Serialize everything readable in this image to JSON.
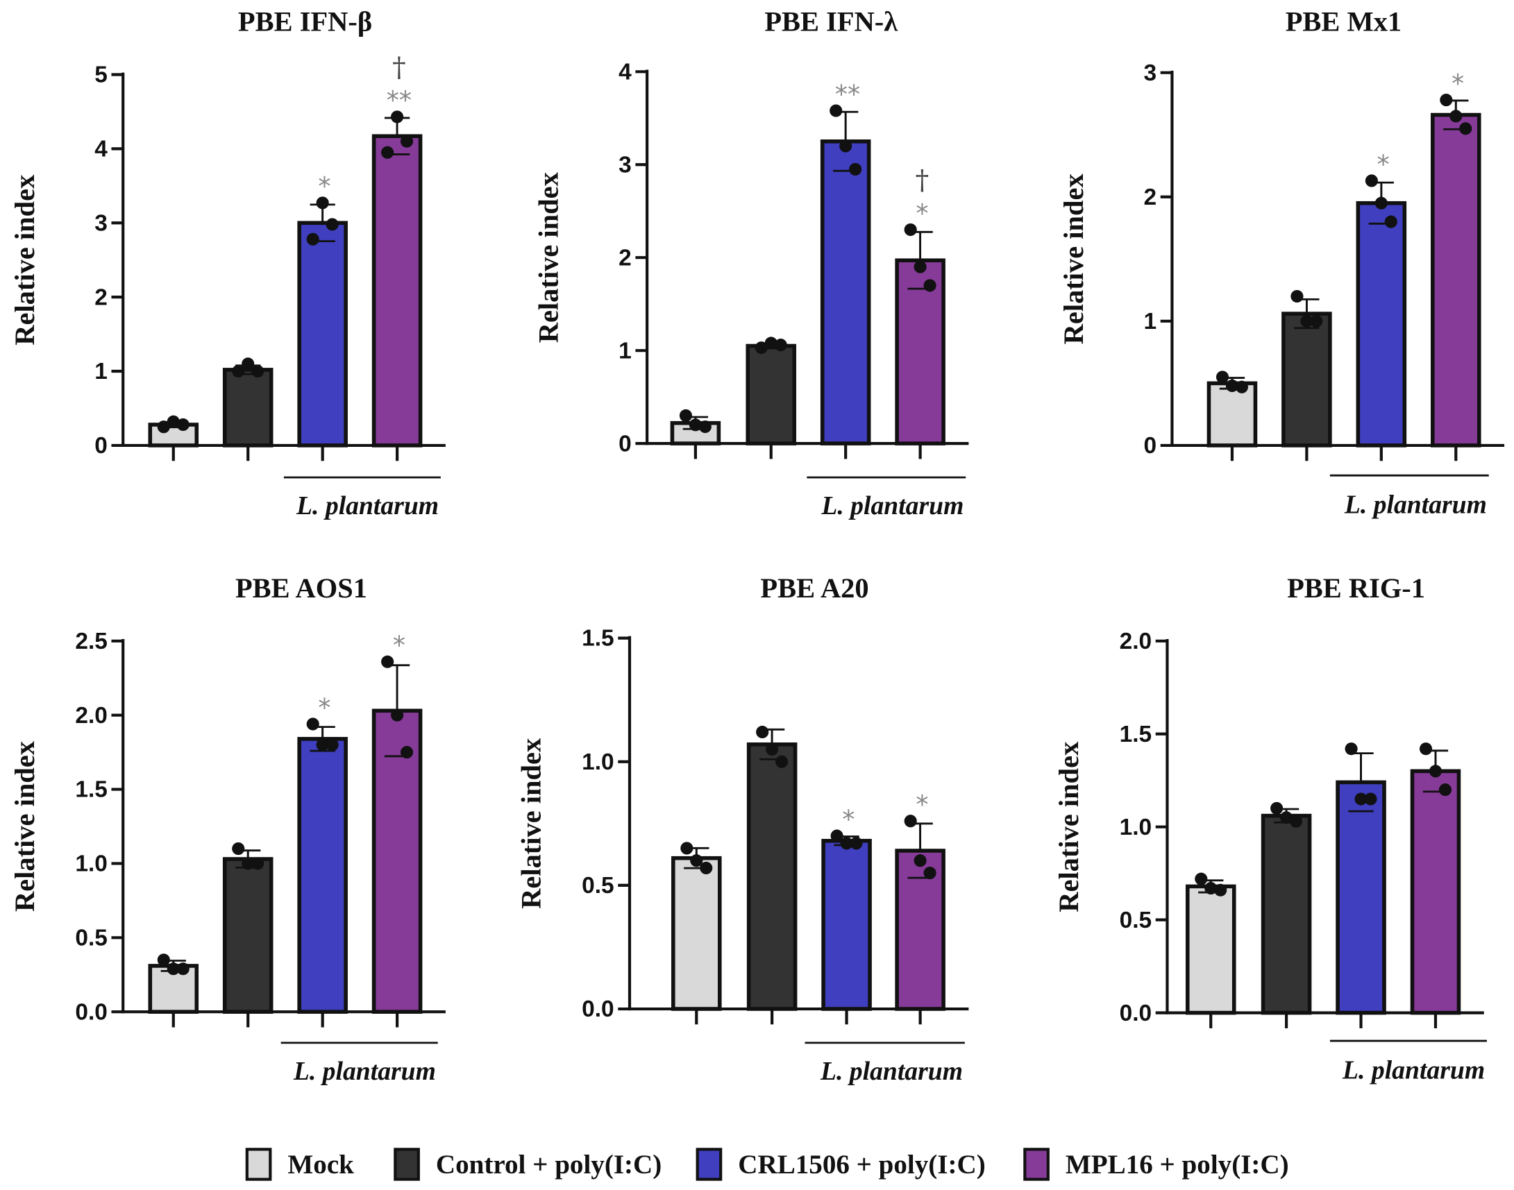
{
  "chart_data": [
    {
      "type": "bar",
      "title": "PBE IFN-β",
      "ylabel": "Relative index",
      "ylim": [
        0,
        5
      ],
      "yticks": [
        "0",
        "1",
        "2",
        "3",
        "4",
        "5"
      ],
      "group_label": "L. plantarum",
      "categories": [
        "Mock",
        "Control + poly(I:C)",
        "CRL1506 + poly(I:C)",
        "MPL16 + poly(I:C)"
      ],
      "values": [
        0.28,
        1.02,
        3.0,
        4.17
      ],
      "points": [
        [
          0.25,
          0.32,
          0.28
        ],
        [
          1.0,
          1.1,
          1.0
        ],
        [
          2.78,
          3.27,
          2.98
        ],
        [
          3.95,
          4.43,
          4.1
        ]
      ],
      "significance": [
        "",
        "",
        "*",
        "**"
      ],
      "dagger": [
        "",
        "",
        "",
        "†"
      ]
    },
    {
      "type": "bar",
      "title": "PBE IFN-λ",
      "ylabel": "Relative index",
      "ylim": [
        0,
        4
      ],
      "yticks": [
        "0",
        "1",
        "2",
        "3",
        "4"
      ],
      "group_label": "L. plantarum",
      "categories": [
        "Mock",
        "Control + poly(I:C)",
        "CRL1506 + poly(I:C)",
        "MPL16 + poly(I:C)"
      ],
      "values": [
        0.22,
        1.05,
        3.25,
        1.97
      ],
      "points": [
        [
          0.3,
          0.2,
          0.18
        ],
        [
          1.03,
          1.08,
          1.06
        ],
        [
          3.58,
          3.2,
          2.95
        ],
        [
          2.3,
          1.9,
          1.7
        ]
      ],
      "significance": [
        "",
        "",
        "**",
        "*"
      ],
      "dagger": [
        "",
        "",
        "",
        "†"
      ]
    },
    {
      "type": "bar",
      "title": "PBE Mx1",
      "ylabel": "Relative index",
      "ylim": [
        0,
        3
      ],
      "yticks": [
        "0",
        "1",
        "2",
        "3"
      ],
      "group_label": "L. plantarum",
      "categories": [
        "Mock",
        "Control + poly(I:C)",
        "CRL1506 + poly(I:C)",
        "MPL16 + poly(I:C)"
      ],
      "values": [
        0.5,
        1.06,
        1.95,
        2.66
      ],
      "points": [
        [
          0.55,
          0.48,
          0.47
        ],
        [
          1.2,
          1.0,
          1.0
        ],
        [
          2.13,
          1.95,
          1.8
        ],
        [
          2.78,
          2.65,
          2.55
        ]
      ],
      "significance": [
        "",
        "",
        "*",
        "*"
      ],
      "dagger": [
        "",
        "",
        "",
        ""
      ]
    },
    {
      "type": "bar",
      "title": "PBE AOS1",
      "ylabel": "Relative index",
      "ylim": [
        0,
        2.5
      ],
      "yticks": [
        "0.0",
        "0.5",
        "1.0",
        "1.5",
        "2.0",
        "2.5"
      ],
      "group_label": "L. plantarum",
      "categories": [
        "Mock",
        "Control + poly(I:C)",
        "CRL1506 + poly(I:C)",
        "MPL16 + poly(I:C)"
      ],
      "values": [
        0.31,
        1.03,
        1.84,
        2.03
      ],
      "points": [
        [
          0.35,
          0.29,
          0.29
        ],
        [
          1.1,
          1.0,
          1.0
        ],
        [
          1.94,
          1.8,
          1.8
        ],
        [
          2.36,
          2.0,
          1.75
        ]
      ],
      "significance": [
        "",
        "",
        "*",
        "*"
      ],
      "dagger": [
        "",
        "",
        "",
        ""
      ]
    },
    {
      "type": "bar",
      "title": "PBE A20",
      "ylabel": "Relative index",
      "ylim": [
        0,
        1.5
      ],
      "yticks": [
        "0.0",
        "0.5",
        "1.0",
        "1.5"
      ],
      "group_label": "L. plantarum",
      "categories": [
        "Mock",
        "Control + poly(I:C)",
        "CRL1506 + poly(I:C)",
        "MPL16 + poly(I:C)"
      ],
      "values": [
        0.61,
        1.07,
        0.68,
        0.64
      ],
      "points": [
        [
          0.65,
          0.6,
          0.57
        ],
        [
          1.12,
          1.05,
          1.0
        ],
        [
          0.7,
          0.67,
          0.67
        ],
        [
          0.76,
          0.6,
          0.55
        ]
      ],
      "significance": [
        "",
        "",
        "*",
        "*"
      ],
      "dagger": [
        "",
        "",
        "",
        ""
      ]
    },
    {
      "type": "bar",
      "title": "PBE RIG-1",
      "ylabel": "Relative index",
      "ylim": [
        0,
        2
      ],
      "yticks": [
        "0.0",
        "0.5",
        "1.0",
        "1.5",
        "2.0"
      ],
      "group_label": "L. plantarum",
      "categories": [
        "Mock",
        "Control + poly(I:C)",
        "CRL1506 + poly(I:C)",
        "MPL16 + poly(I:C)"
      ],
      "values": [
        0.68,
        1.06,
        1.24,
        1.3
      ],
      "points": [
        [
          0.72,
          0.67,
          0.66
        ],
        [
          1.1,
          1.05,
          1.03
        ],
        [
          1.42,
          1.15,
          1.15
        ],
        [
          1.42,
          1.3,
          1.2
        ]
      ],
      "significance": [
        "",
        "",
        "",
        ""
      ],
      "dagger": [
        "",
        "",
        "",
        ""
      ]
    }
  ],
  "legend": {
    "placement": "bottom",
    "items": [
      {
        "label": "Mock",
        "color": "#d9d9d9"
      },
      {
        "label": "Control + poly(I:C)",
        "color": "#333333"
      },
      {
        "label": "CRL1506 + poly(I:C)",
        "color": "#3f3fbf"
      },
      {
        "label": "MPL16 + poly(I:C)",
        "color": "#863b99"
      }
    ]
  }
}
